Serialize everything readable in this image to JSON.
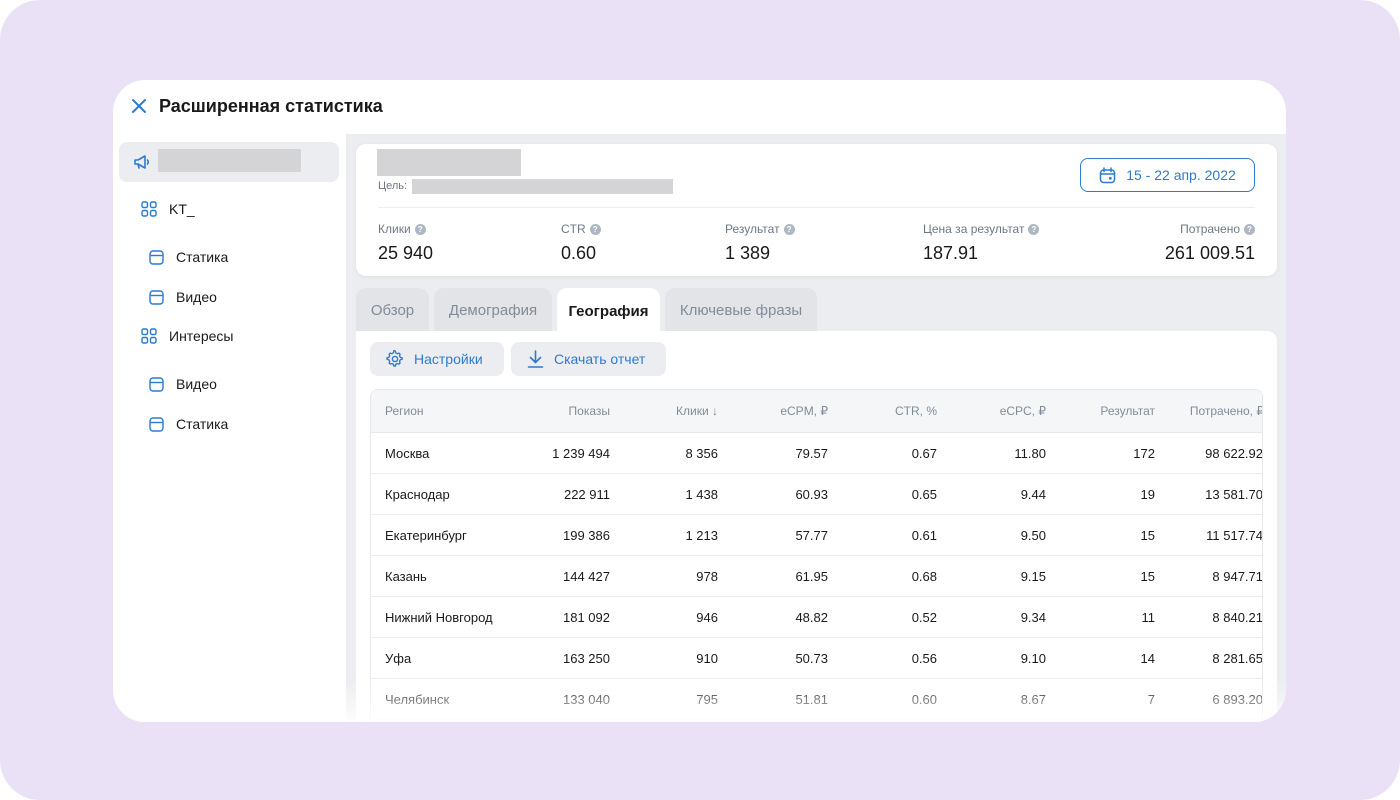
{
  "window": {
    "title": "Расширенная статистика"
  },
  "sidebar": {
    "items": [
      {
        "label": "KT_",
        "icon": "grid-icon"
      },
      {
        "label": "Статика",
        "icon": "ad-card-icon"
      },
      {
        "label": "Видео",
        "icon": "ad-card-icon"
      },
      {
        "label": "Интересы",
        "icon": "grid-icon"
      },
      {
        "label": "Видео",
        "icon": "ad-card-icon"
      },
      {
        "label": "Статика",
        "icon": "ad-card-icon"
      }
    ]
  },
  "summary": {
    "goal_label": "Цель:",
    "date_range": "15 - 22 апр. 2022",
    "metrics": [
      {
        "label": "Клики",
        "value": "25 940"
      },
      {
        "label": "CTR",
        "value": "0.60"
      },
      {
        "label": "Результат",
        "value": "1 389"
      },
      {
        "label": "Цена за результат",
        "value": "187.91"
      },
      {
        "label": "Потрачено",
        "value": "261 009.51"
      }
    ]
  },
  "tabs": [
    {
      "label": "Обзор",
      "active": false
    },
    {
      "label": "Демография",
      "active": false
    },
    {
      "label": "География",
      "active": true
    },
    {
      "label": "Ключевые фразы",
      "active": false
    }
  ],
  "toolbar": {
    "settings_label": "Настройки",
    "download_label": "Скачать отчет"
  },
  "table": {
    "headers": [
      "Регион",
      "Показы",
      "Клики ↓",
      "eCPM, ₽",
      "CTR, %",
      "eCPC, ₽",
      "Результат",
      "Потрачено, ₽"
    ],
    "rows": [
      [
        "Москва",
        "1 239 494",
        "8 356",
        "79.57",
        "0.67",
        "11.80",
        "172",
        "98 622.92"
      ],
      [
        "Краснодар",
        "222 911",
        "1 438",
        "60.93",
        "0.65",
        "9.44",
        "19",
        "13 581.70"
      ],
      [
        "Екатеринбург",
        "199 386",
        "1 213",
        "57.77",
        "0.61",
        "9.50",
        "15",
        "11 517.74"
      ],
      [
        "Казань",
        "144 427",
        "978",
        "61.95",
        "0.68",
        "9.15",
        "15",
        "8 947.71"
      ],
      [
        "Нижний Новгород",
        "181 092",
        "946",
        "48.82",
        "0.52",
        "9.34",
        "11",
        "8 840.21"
      ],
      [
        "Уфа",
        "163 250",
        "910",
        "50.73",
        "0.56",
        "9.10",
        "14",
        "8 281.65"
      ],
      [
        "Челябинск",
        "133 040",
        "795",
        "51.81",
        "0.60",
        "8.67",
        "7",
        "6 893.20"
      ]
    ]
  },
  "colors": {
    "background": "#ebe1f7",
    "accent": "#2c7bd0",
    "surface": "#ebedf0"
  }
}
